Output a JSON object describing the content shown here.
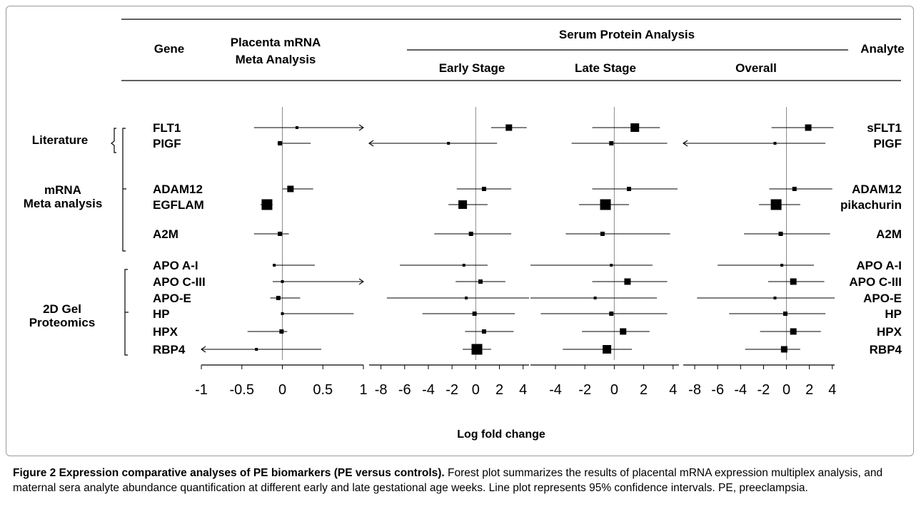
{
  "header": {
    "gene": "Gene",
    "placenta_line1": "Placenta mRNA",
    "placenta_line2": "Meta Analysis",
    "serum": "Serum Protein Analysis",
    "early": "Early Stage",
    "late": "Late Stage",
    "overall": "Overall",
    "analyte": "Analyte"
  },
  "groups": [
    {
      "label_lines": [
        "Literature"
      ]
    },
    {
      "label_lines": [
        "mRNA",
        "Meta analysis"
      ]
    },
    {
      "label_lines": [
        "2D Gel",
        "Proteomics"
      ]
    }
  ],
  "xlabel": "Log  fold change",
  "chart_data": {
    "type": "forest",
    "xlabel": "Log  fold change",
    "panels": [
      {
        "key": "placenta",
        "title": "Placenta mRNA Meta Analysis",
        "xlim": [
          -1,
          1
        ],
        "ticks": [
          -1,
          -0.5,
          0,
          0.5,
          1
        ],
        "tick_labels": [
          "-1",
          "-0.5",
          "0",
          "0.5",
          "1"
        ]
      },
      {
        "key": "early",
        "title": "Early Stage",
        "xlim": [
          -9,
          4.5
        ],
        "ticks": [
          -8,
          -6,
          -4,
          -2,
          0,
          2,
          4
        ],
        "tick_labels": [
          "-8",
          "-6",
          "-4",
          "-2",
          "0",
          "2",
          "4"
        ]
      },
      {
        "key": "late",
        "title": "Late Stage",
        "xlim": [
          -5.7,
          4.4
        ],
        "ticks": [
          -4,
          -2,
          0,
          2,
          4
        ],
        "tick_labels": [
          "-4",
          "-2",
          "0",
          "2",
          "4"
        ]
      },
      {
        "key": "overall",
        "title": "Overall",
        "xlim": [
          -9,
          4.2
        ],
        "ticks": [
          -8,
          -6,
          -4,
          -2,
          0,
          2,
          4
        ],
        "tick_labels": [
          "-8",
          "-6",
          "-4",
          "-2",
          "0",
          "2",
          "4"
        ]
      }
    ],
    "rows": [
      {
        "gene": "FLT1",
        "analyte": "sFLT1",
        "group": 0,
        "placenta": {
          "est": 0.18,
          "lo": -0.35,
          "hi": 1.0,
          "arrow_hi": true,
          "size": 1
        },
        "early": {
          "est": 2.8,
          "lo": 1.3,
          "hi": 4.3,
          "size": 3
        },
        "late": {
          "est": 1.4,
          "lo": -1.5,
          "hi": 3.1,
          "size": 4
        },
        "overall": {
          "est": 1.9,
          "lo": -1.3,
          "hi": 4.1,
          "size": 3
        }
      },
      {
        "gene": "PIGF",
        "analyte": "PIGF",
        "group": 0,
        "placenta": {
          "est": -0.03,
          "lo": -0.06,
          "hi": 0.35,
          "size": 2
        },
        "early": {
          "est": -2.3,
          "lo": -9.0,
          "hi": 1.8,
          "arrow_lo": true,
          "size": 1
        },
        "late": {
          "est": -0.2,
          "lo": -2.9,
          "hi": 3.6,
          "size": 2
        },
        "overall": {
          "est": -1.0,
          "lo": -9.0,
          "hi": 3.4,
          "arrow_lo": true,
          "size": 1
        }
      },
      {
        "gene": "ADAM12",
        "analyte": "ADAM12",
        "group": 1,
        "placenta": {
          "est": 0.1,
          "lo": 0.0,
          "hi": 0.38,
          "size": 3
        },
        "early": {
          "est": 0.7,
          "lo": -1.6,
          "hi": 3.0,
          "size": 2
        },
        "late": {
          "est": 1.0,
          "lo": -1.5,
          "hi": 4.3,
          "size": 2
        },
        "overall": {
          "est": 0.7,
          "lo": -1.5,
          "hi": 4.0,
          "size": 2
        }
      },
      {
        "gene": "EGFLAM",
        "analyte": "pikachurin",
        "group": 1,
        "placenta": {
          "est": -0.19,
          "lo": -0.27,
          "hi": -0.12,
          "size": 5
        },
        "early": {
          "est": -1.1,
          "lo": -2.3,
          "hi": 1.0,
          "size": 4
        },
        "late": {
          "est": -0.6,
          "lo": -2.4,
          "hi": 1.0,
          "size": 5
        },
        "overall": {
          "est": -0.9,
          "lo": -2.4,
          "hi": 1.2,
          "size": 5
        }
      },
      {
        "gene": "A2M",
        "analyte": "A2M",
        "group": 1,
        "placenta": {
          "est": -0.03,
          "lo": -0.35,
          "hi": 0.08,
          "size": 2
        },
        "early": {
          "est": -0.4,
          "lo": -3.5,
          "hi": 3.0,
          "size": 2
        },
        "late": {
          "est": -0.8,
          "lo": -3.3,
          "hi": 3.8,
          "size": 2
        },
        "overall": {
          "est": -0.5,
          "lo": -3.7,
          "hi": 3.8,
          "size": 2
        }
      },
      {
        "gene": "APO A-I",
        "analyte": "APO A-I",
        "group": 2,
        "placenta": {
          "est": -0.1,
          "lo": -0.12,
          "hi": 0.4,
          "size": 1
        },
        "early": {
          "est": -1.0,
          "lo": -6.4,
          "hi": 1.0,
          "size": 1
        },
        "late": {
          "est": -0.2,
          "lo": -5.7,
          "hi": 2.6,
          "size": 1
        },
        "overall": {
          "est": -0.4,
          "lo": -6.0,
          "hi": 2.4,
          "size": 1
        }
      },
      {
        "gene": "APO C-III",
        "analyte": "APO C-III",
        "group": 2,
        "placenta": {
          "est": 0.0,
          "lo": -0.12,
          "hi": 1.0,
          "arrow_hi": true,
          "size": 1
        },
        "early": {
          "est": 0.4,
          "lo": -1.7,
          "hi": 2.5,
          "size": 2
        },
        "late": {
          "est": 0.9,
          "lo": -1.5,
          "hi": 3.6,
          "size": 3
        },
        "overall": {
          "est": 0.6,
          "lo": -1.6,
          "hi": 3.3,
          "size": 3
        }
      },
      {
        "gene": "APO-E",
        "analyte": "APO-E",
        "group": 2,
        "placenta": {
          "est": -0.05,
          "lo": -0.15,
          "hi": 0.22,
          "size": 2
        },
        "early": {
          "est": -0.8,
          "lo": -7.5,
          "hi": 4.5,
          "size": 1
        },
        "late": {
          "est": -1.3,
          "lo": -5.7,
          "hi": 2.9,
          "size": 1
        },
        "overall": {
          "est": -1.0,
          "lo": -7.8,
          "hi": 4.2,
          "size": 1
        }
      },
      {
        "gene": "HP",
        "analyte": "HP",
        "group": 2,
        "placenta": {
          "est": 0.0,
          "lo": 0.0,
          "hi": 0.88,
          "size": 1
        },
        "early": {
          "est": -0.1,
          "lo": -4.5,
          "hi": 3.3,
          "size": 2
        },
        "late": {
          "est": -0.2,
          "lo": -5.0,
          "hi": 3.6,
          "size": 2
        },
        "overall": {
          "est": -0.1,
          "lo": -5.0,
          "hi": 3.4,
          "size": 2
        }
      },
      {
        "gene": "HPX",
        "analyte": "HPX",
        "group": 2,
        "placenta": {
          "est": -0.01,
          "lo": -0.43,
          "hi": 0.06,
          "size": 2
        },
        "early": {
          "est": 0.7,
          "lo": -0.9,
          "hi": 3.2,
          "size": 2
        },
        "late": {
          "est": 0.6,
          "lo": -2.2,
          "hi": 2.4,
          "size": 3
        },
        "overall": {
          "est": 0.6,
          "lo": -2.3,
          "hi": 3.0,
          "size": 3
        }
      },
      {
        "gene": "RBP4",
        "analyte": "RBP4",
        "group": 2,
        "placenta": {
          "est": -0.32,
          "lo": -1.0,
          "hi": 0.48,
          "arrow_lo": true,
          "size": 1
        },
        "early": {
          "est": 0.1,
          "lo": -1.1,
          "hi": 1.3,
          "size": 5
        },
        "late": {
          "est": -0.5,
          "lo": -3.5,
          "hi": 1.2,
          "size": 4
        },
        "overall": {
          "est": -0.2,
          "lo": -3.6,
          "hi": 1.2,
          "size": 3
        }
      }
    ]
  },
  "caption": {
    "label": "Figure 2 Expression comparative analyses of PE biomarkers (PE versus controls).",
    "text": " Forest plot summarizes the results of placental mRNA expression multiplex analysis, and maternal sera analyte abundance quantification at different early and late gestational age weeks. Line plot represents 95% confidence intervals. PE, preeclampsia."
  }
}
